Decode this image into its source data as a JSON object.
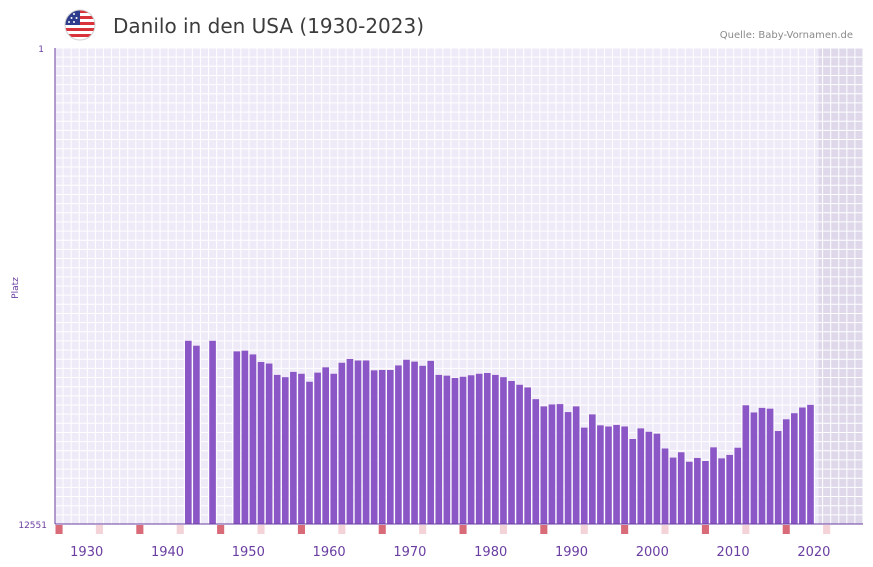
{
  "header": {
    "title": "Danilo in den USA (1930-2023)",
    "source": "Quelle: Baby-Vornamen.de",
    "flag_icon": "us-flag-icon"
  },
  "colors": {
    "bar": "#8b57c6",
    "axis": "#6a3ea1",
    "plot_bg": "#efeaf8",
    "grid": "#ffffff",
    "marker": "#d96a78",
    "marker_light": "#f4d3d8",
    "future_shade": "#ded8ea"
  },
  "chart_data": {
    "type": "bar",
    "title": "Danilo in den USA (1930-2023)",
    "xlabel": "",
    "ylabel": "Platz",
    "y_inverted": true,
    "ylim": [
      1,
      12551
    ],
    "y_tick_labels": [
      "1",
      "12551"
    ],
    "xlim": [
      1928,
      2028
    ],
    "x_ticks": [
      1930,
      1940,
      1950,
      1960,
      1970,
      1980,
      1990,
      2000,
      2010,
      2020
    ],
    "shaded_from_year": 2022.5,
    "x": [
      1944,
      1945,
      1947,
      1950,
      1951,
      1952,
      1953,
      1954,
      1955,
      1956,
      1957,
      1958,
      1959,
      1960,
      1961,
      1962,
      1963,
      1964,
      1965,
      1966,
      1967,
      1968,
      1969,
      1970,
      1971,
      1972,
      1973,
      1974,
      1975,
      1976,
      1977,
      1978,
      1979,
      1980,
      1981,
      1982,
      1983,
      1984,
      1985,
      1986,
      1987,
      1988,
      1989,
      1990,
      1991,
      1992,
      1993,
      1994,
      1995,
      1996,
      1997,
      1998,
      1999,
      2000,
      2001,
      2002,
      2003,
      2004,
      2005,
      2006,
      2007,
      2008,
      2009,
      2010,
      2011,
      2012,
      2013,
      2014,
      2015,
      2016,
      2017,
      2018,
      2019,
      2020,
      2021
    ],
    "values": [
      7720,
      7850,
      7720,
      8000,
      7980,
      8080,
      8280,
      8320,
      8620,
      8680,
      8540,
      8590,
      8800,
      8560,
      8420,
      8590,
      8300,
      8200,
      8240,
      8240,
      8500,
      8490,
      8490,
      8370,
      8220,
      8270,
      8380,
      8250,
      8620,
      8640,
      8700,
      8670,
      8630,
      8590,
      8570,
      8620,
      8680,
      8780,
      8880,
      8950,
      9260,
      9450,
      9400,
      9390,
      9600,
      9450,
      10010,
      9660,
      9950,
      9980,
      9940,
      9980,
      10310,
      10030,
      10120,
      10170,
      10560,
      10800,
      10660,
      10910,
      10810,
      10890,
      10530,
      10820,
      10730,
      10540,
      9420,
      9610,
      9490,
      9510,
      10100,
      9790,
      9630,
      9480,
      9410
    ]
  }
}
